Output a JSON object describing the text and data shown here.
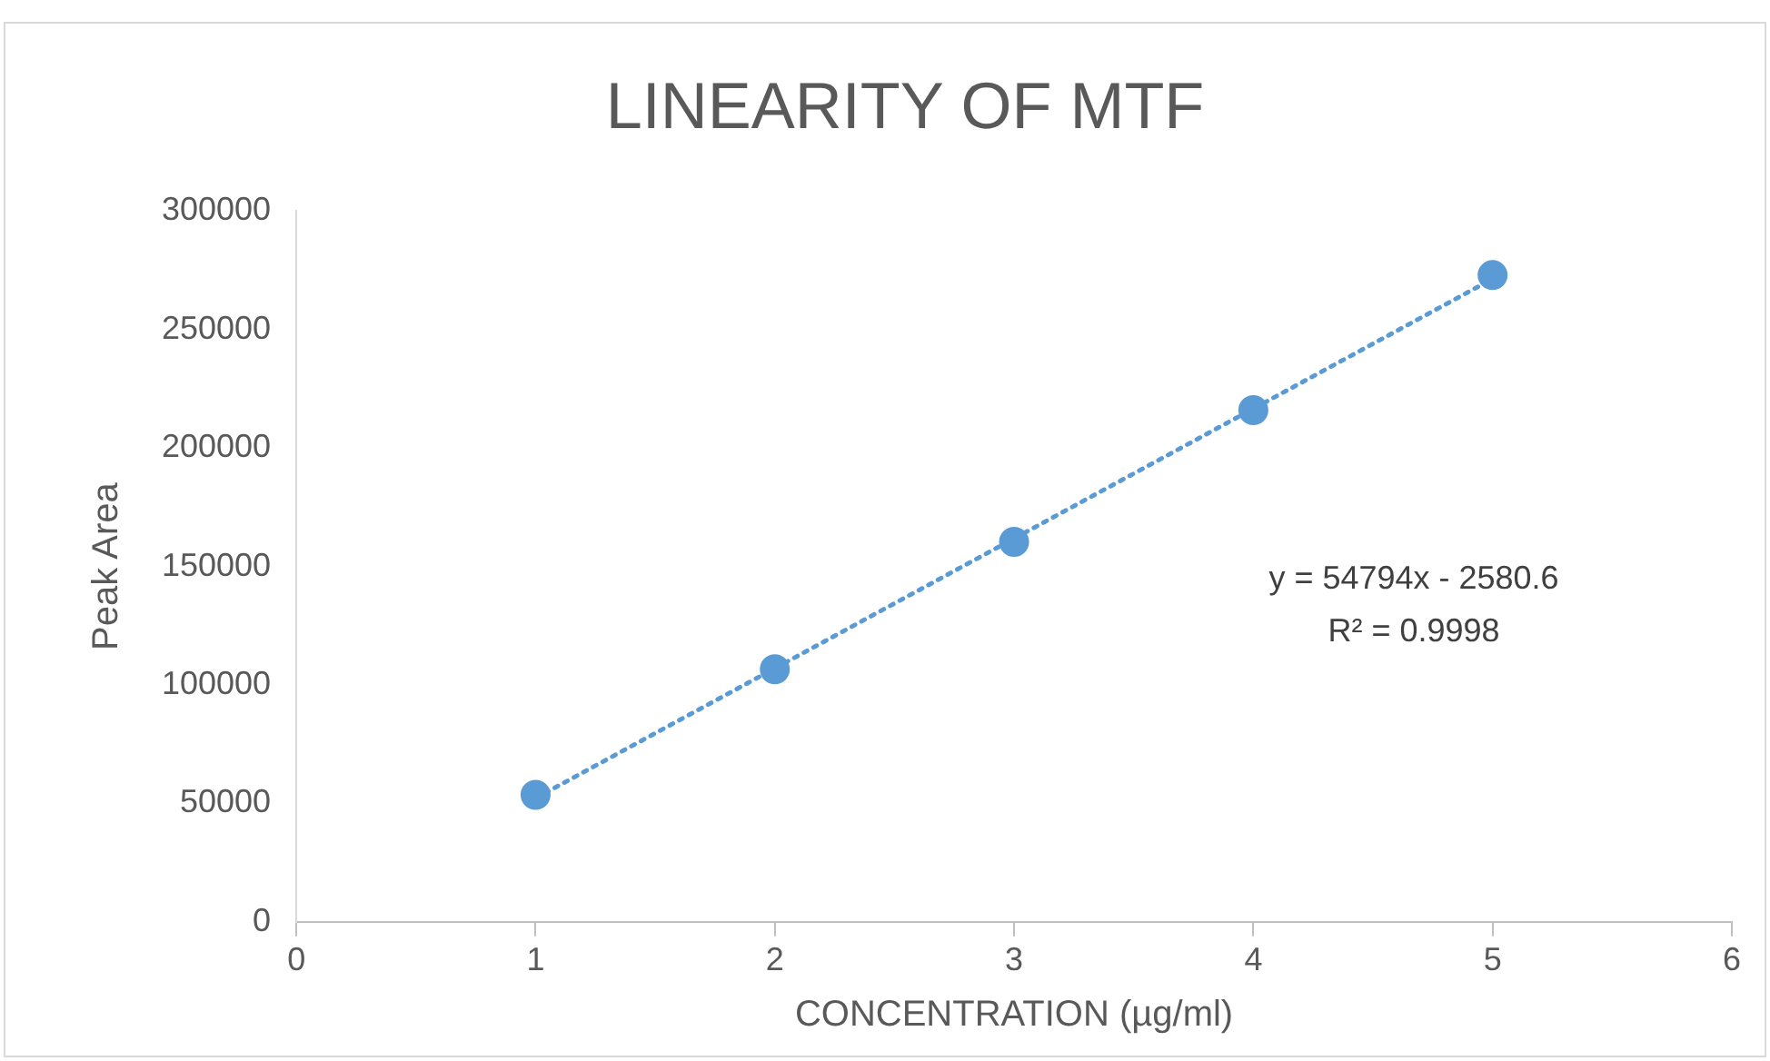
{
  "chart_data": {
    "type": "scatter",
    "title": "LINEARITY OF MTF",
    "xlabel": "CONCENTRATION (µg/ml)",
    "ylabel": "Peak Area",
    "xlim": [
      0,
      6
    ],
    "xticks": [
      0,
      1,
      2,
      3,
      4,
      5,
      6
    ],
    "ylim": [
      0,
      300000
    ],
    "yticks": [
      0,
      50000,
      100000,
      150000,
      200000,
      250000,
      300000
    ],
    "grid": false,
    "legend": false,
    "marker": "circle",
    "series": [
      {
        "color": "#5b9bd5",
        "x": [
          1,
          2,
          3,
          4,
          5
        ],
        "values": [
          53600,
          106600,
          160400,
          216000,
          273000
        ]
      },
      {
        "type": "line",
        "line_style": "dotted",
        "marker": "none",
        "color": "#5b9bd5",
        "x": [
          1,
          5
        ],
        "values": [
          52200,
          271400
        ]
      }
    ],
    "annotations": [
      "y = 54794x - 2580.6",
      "R² = 0.9998"
    ]
  }
}
